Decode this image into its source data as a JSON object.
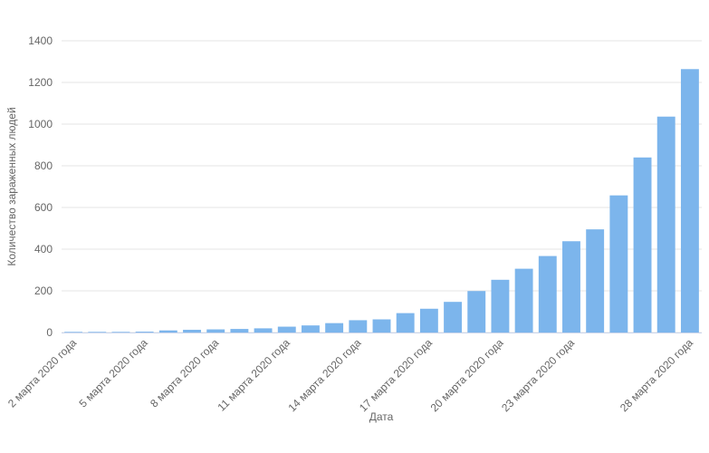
{
  "chart_data": {
    "type": "bar",
    "x_label": "Дата",
    "y_label": "Количество зараженных людей",
    "categories": [
      "2 марта 2020 года",
      null,
      null,
      "5 марта 2020 года",
      null,
      null,
      "8 марта 2020 года",
      null,
      null,
      "11 марта 2020 года",
      null,
      null,
      "14 марта 2020 года",
      null,
      null,
      "17 марта 2020 года",
      null,
      null,
      "20 марта 2020 года",
      null,
      null,
      "23 марта 2020 года",
      null,
      null,
      null,
      null,
      "28 марта 2020 года"
    ],
    "values": [
      3,
      3,
      3,
      4,
      10,
      13,
      15,
      17,
      20,
      28,
      34,
      45,
      59,
      63,
      93,
      114,
      147,
      199,
      253,
      306,
      367,
      438,
      495,
      658,
      840,
      1036,
      1264
    ],
    "color": "#7cb5ec",
    "ylim": [
      0,
      1400
    ],
    "yticks": [
      0,
      200,
      400,
      600,
      800,
      1000,
      1200,
      1400
    ],
    "grid": true
  }
}
